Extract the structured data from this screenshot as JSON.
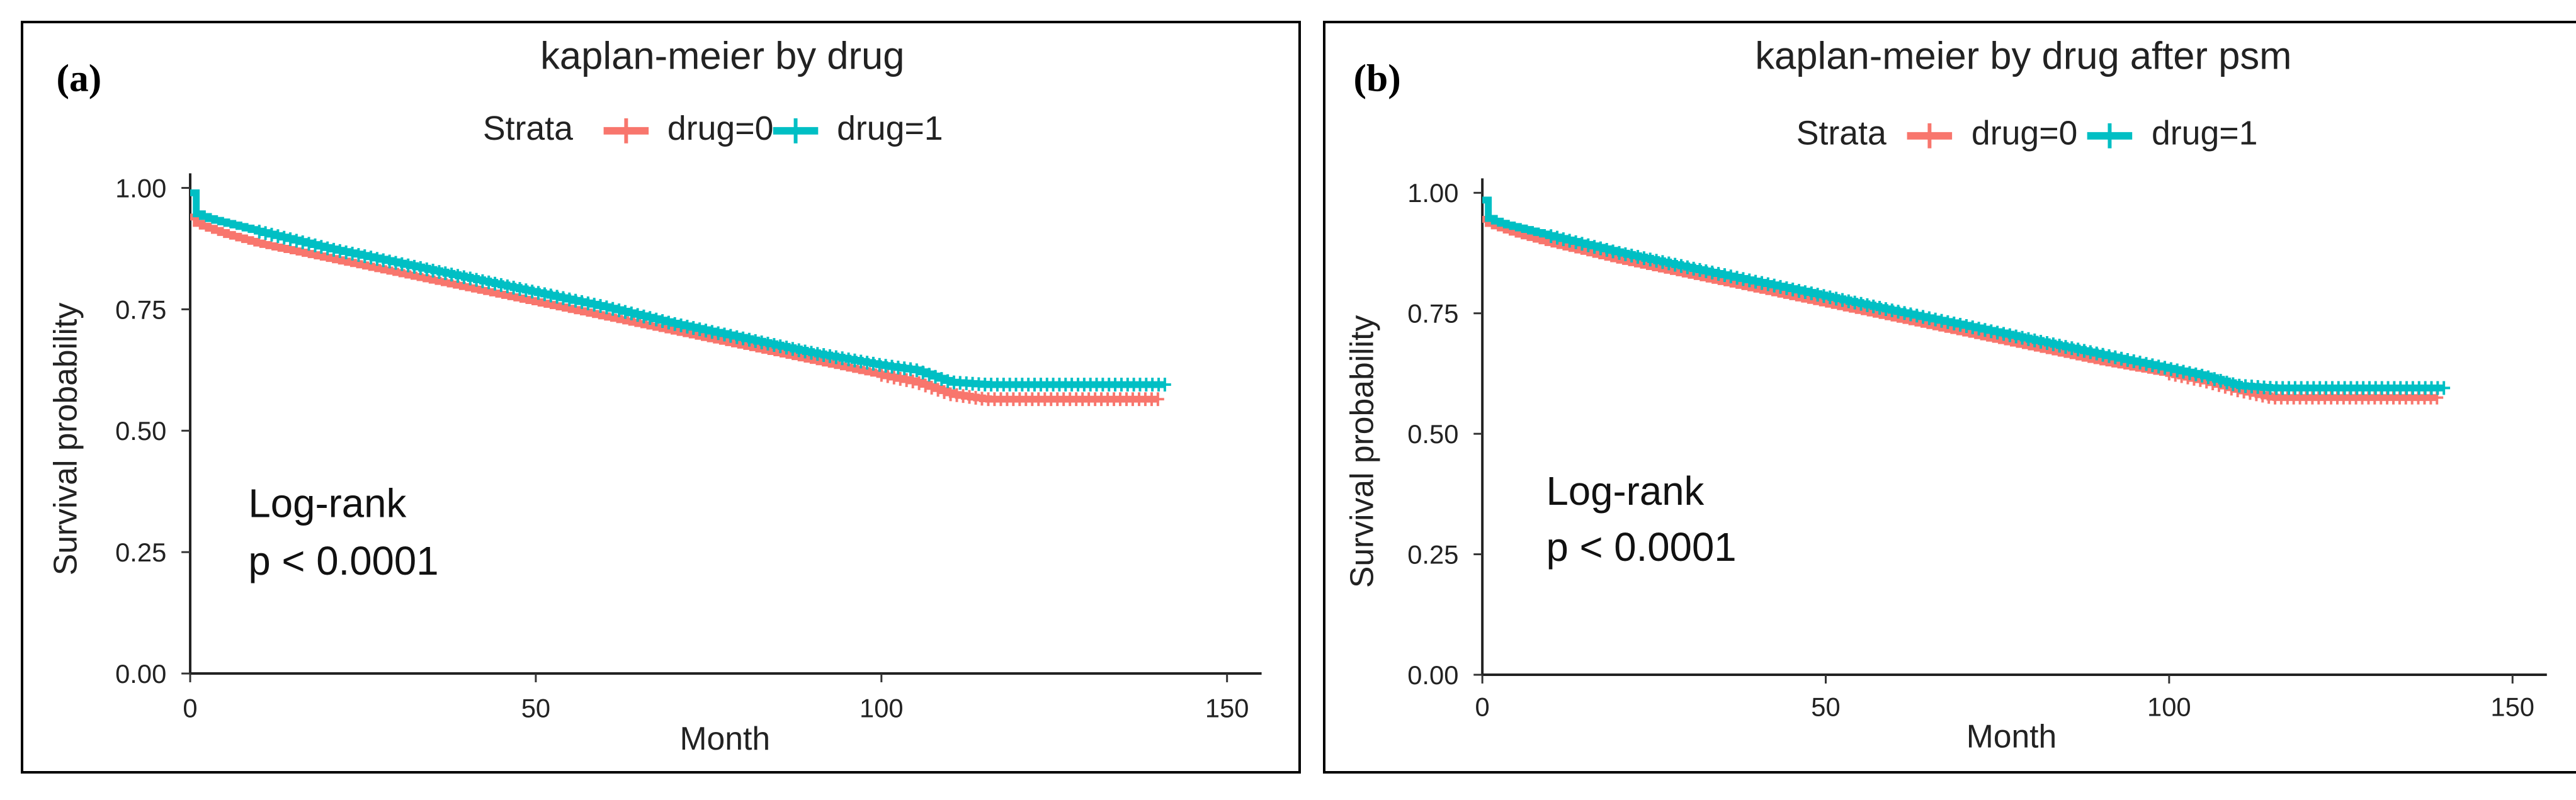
{
  "chart_data": [
    {
      "panel_tag": "(a)",
      "type": "line",
      "title": "kaplan-meier by drug",
      "legend_title": "Strata",
      "xlabel": "Month",
      "ylabel": "Survival probability",
      "xlim": [
        0,
        155
      ],
      "ylim": [
        0,
        1.03
      ],
      "xticks": [
        "0",
        "50",
        "100",
        "150"
      ],
      "yticks": [
        "0.00",
        "0.25",
        "0.50",
        "0.75",
        "1.00"
      ],
      "annotation": [
        "Log-rank",
        "p < 0.0001"
      ],
      "series": [
        {
          "name": "drug=0",
          "color": "#F8766D",
          "x": [
            0,
            1,
            3,
            5,
            10,
            20,
            30,
            40,
            50,
            60,
            70,
            80,
            90,
            100,
            105,
            110,
            115,
            120,
            130,
            140
          ],
          "y": [
            0.94,
            0.925,
            0.915,
            0.905,
            0.885,
            0.855,
            0.825,
            0.795,
            0.765,
            0.735,
            0.705,
            0.675,
            0.645,
            0.615,
            0.6,
            0.575,
            0.565,
            0.565,
            0.565,
            0.565
          ],
          "censor_start": 100,
          "censor_end": 140
        },
        {
          "name": "drug=1",
          "color": "#00BFC4",
          "x": [
            0,
            0.3,
            1,
            3,
            10,
            20,
            30,
            40,
            50,
            60,
            70,
            80,
            90,
            100,
            105,
            110,
            115,
            120,
            130,
            141
          ],
          "y": [
            0.99,
            0.955,
            0.945,
            0.935,
            0.91,
            0.875,
            0.845,
            0.815,
            0.785,
            0.755,
            0.72,
            0.69,
            0.66,
            0.635,
            0.625,
            0.6,
            0.595,
            0.595,
            0.595,
            0.595
          ],
          "censor_start": 10,
          "censor_end": 141
        }
      ]
    },
    {
      "panel_tag": "(b)",
      "type": "line",
      "title": "kaplan-meier by drug after psm",
      "legend_title": "Strata",
      "xlabel": "Month",
      "ylabel": "Survival probability",
      "xlim": [
        0,
        155
      ],
      "ylim": [
        0,
        1.03
      ],
      "xticks": [
        "0",
        "50",
        "100",
        "150"
      ],
      "yticks": [
        "0.00",
        "0.25",
        "0.50",
        "0.75",
        "1.00"
      ],
      "annotation": [
        "Log-rank",
        "p < 0.0001"
      ],
      "series": [
        {
          "name": "drug=0",
          "color": "#F8766D",
          "x": [
            0,
            1,
            3,
            5,
            10,
            20,
            30,
            40,
            50,
            60,
            70,
            80,
            90,
            100,
            105,
            110,
            115,
            120,
            130,
            139
          ],
          "y": [
            0.945,
            0.935,
            0.925,
            0.915,
            0.895,
            0.86,
            0.83,
            0.8,
            0.77,
            0.74,
            0.71,
            0.68,
            0.65,
            0.625,
            0.61,
            0.59,
            0.575,
            0.575,
            0.575,
            0.575
          ],
          "censor_start": 100,
          "censor_end": 139
        },
        {
          "name": "drug=1",
          "color": "#00BFC4",
          "x": [
            0,
            0.3,
            1,
            3,
            10,
            20,
            30,
            40,
            50,
            60,
            70,
            80,
            90,
            100,
            105,
            110,
            115,
            120,
            130,
            140
          ],
          "y": [
            0.985,
            0.955,
            0.945,
            0.935,
            0.91,
            0.875,
            0.845,
            0.815,
            0.785,
            0.755,
            0.725,
            0.695,
            0.665,
            0.635,
            0.62,
            0.6,
            0.595,
            0.595,
            0.595,
            0.595
          ],
          "censor_start": 10,
          "censor_end": 140
        }
      ]
    }
  ]
}
